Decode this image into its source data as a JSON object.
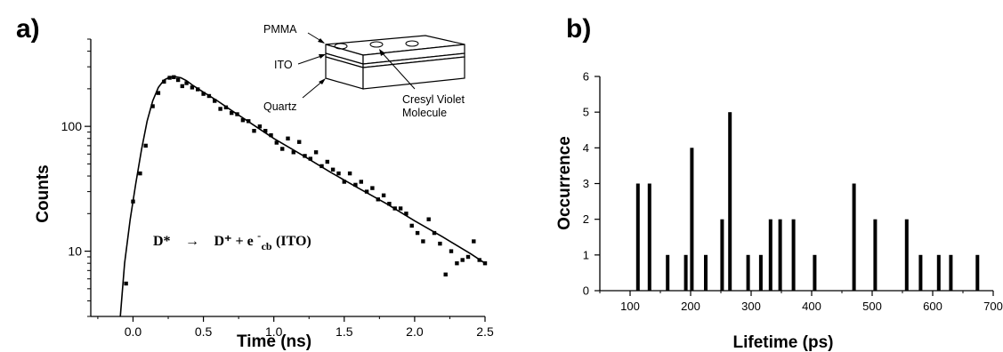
{
  "chart_data": [
    {
      "panel": "a)",
      "type": "scatter",
      "xlabel": "Time (ns)",
      "ylabel": "Counts",
      "xlim": [
        -0.3,
        2.5
      ],
      "ylim": [
        3,
        500
      ],
      "yscale": "log",
      "x_ticks": [
        "0.0",
        "0.5",
        "1.0",
        "1.5",
        "2.0",
        "2.5"
      ],
      "y_ticks": [
        "10",
        "100"
      ],
      "equation": {
        "lhs": "D*",
        "arrow": "→",
        "rhs_a": "D⁺ + e",
        "sup": "-",
        "sub": "cb",
        "rhs_b": " (ITO)"
      },
      "inset_labels": [
        "PMMA",
        "ITO",
        "Quartz",
        "Cresyl Violet",
        "Molecule"
      ],
      "series": [
        {
          "kind": "points",
          "x": [
            -0.05,
            0.0,
            0.05,
            0.09,
            0.14,
            0.18,
            0.22,
            0.26,
            0.29,
            0.32,
            0.35,
            0.38,
            0.42,
            0.46,
            0.5,
            0.54,
            0.58,
            0.62,
            0.66,
            0.7,
            0.74,
            0.78,
            0.82,
            0.86,
            0.9,
            0.94,
            0.98,
            1.02,
            1.06,
            1.1,
            1.14,
            1.18,
            1.22,
            1.26,
            1.3,
            1.34,
            1.38,
            1.42,
            1.46,
            1.5,
            1.54,
            1.58,
            1.62,
            1.66,
            1.7,
            1.74,
            1.78,
            1.82,
            1.86,
            1.9,
            1.94,
            1.98,
            2.02,
            2.06,
            2.1,
            2.14,
            2.18,
            2.22,
            2.26,
            2.3,
            2.34,
            2.38,
            2.42,
            2.46,
            2.5
          ],
          "y": [
            5.5,
            25,
            42,
            70,
            145,
            185,
            228,
            245,
            248,
            235,
            210,
            222,
            205,
            198,
            182,
            175,
            160,
            138,
            142,
            128,
            125,
            112,
            110,
            92,
            100,
            92,
            85,
            74,
            66,
            80,
            62,
            75,
            58,
            55,
            62,
            48,
            52,
            45,
            42,
            36,
            42,
            34,
            36,
            30,
            32,
            26,
            28,
            24,
            22,
            22,
            20,
            16,
            14,
            12,
            18,
            14,
            11.5,
            6.5,
            10,
            8,
            8.5,
            9,
            12,
            8.5,
            8
          ]
        },
        {
          "kind": "fit",
          "x": [
            -0.09,
            -0.06,
            -0.02,
            0.02,
            0.06,
            0.1,
            0.14,
            0.18,
            0.22,
            0.26,
            0.3,
            0.34,
            0.38,
            0.42,
            0.5,
            0.6,
            0.7,
            0.8,
            0.9,
            1.0,
            1.2,
            1.4,
            1.6,
            1.8,
            2.0,
            2.2,
            2.4,
            2.5
          ],
          "y": [
            3.0,
            8.0,
            18,
            35,
            65,
            110,
            160,
            205,
            235,
            248,
            250,
            245,
            232,
            215,
            188,
            160,
            134,
            113,
            95,
            80,
            59,
            43,
            32,
            24,
            17.5,
            13,
            9.5,
            8
          ]
        }
      ]
    },
    {
      "panel": "b)",
      "type": "bar",
      "xlabel": "Lifetime (ps)",
      "ylabel": "Occurrence",
      "xlim": [
        50,
        700
      ],
      "ylim": [
        0,
        6
      ],
      "x_ticks": [
        "100",
        "200",
        "300",
        "400",
        "500",
        "600",
        "700"
      ],
      "y_ticks": [
        "0",
        "1",
        "2",
        "3",
        "4",
        "5",
        "6"
      ],
      "x": [
        113,
        132,
        162,
        192,
        202,
        225,
        252,
        265,
        295,
        316,
        332,
        348,
        370,
        405,
        470,
        505,
        557,
        580,
        610,
        630,
        674
      ],
      "values": [
        3,
        3,
        1,
        1,
        4,
        1,
        2,
        5,
        1,
        1,
        2,
        2,
        2,
        1,
        3,
        2,
        2,
        1,
        1,
        1,
        1
      ]
    }
  ]
}
